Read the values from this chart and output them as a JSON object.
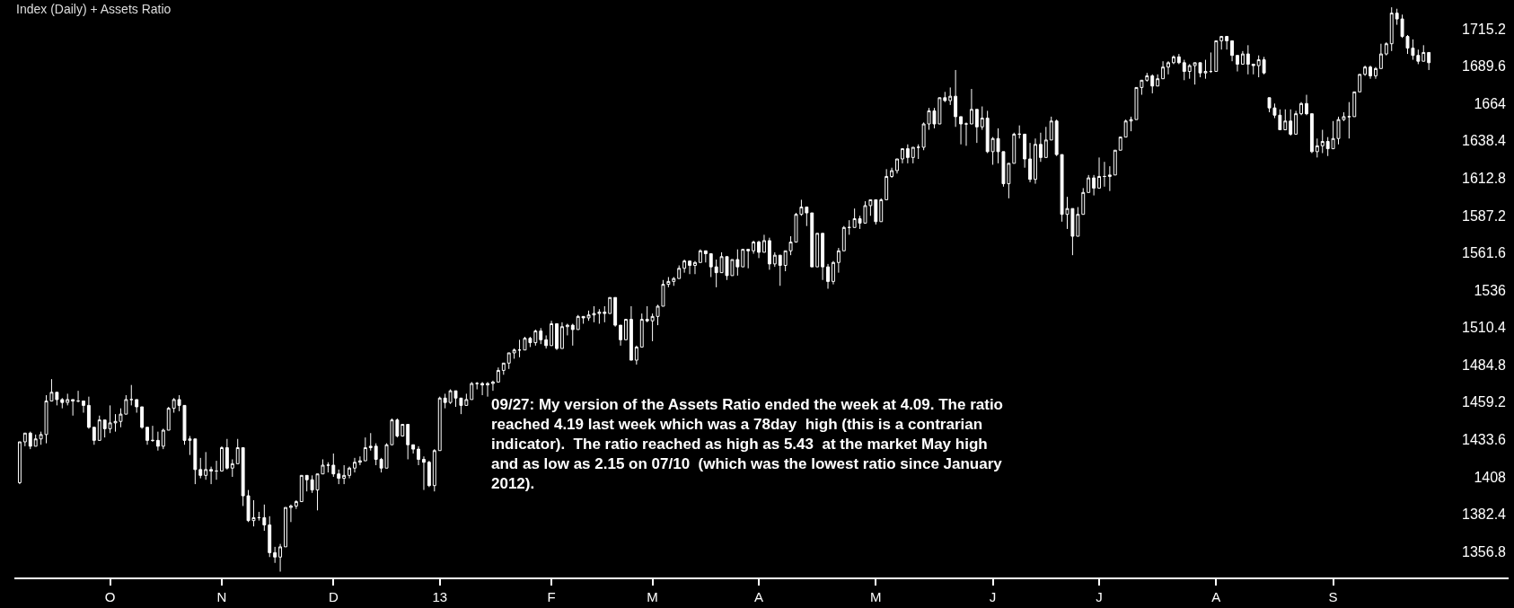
{
  "chart_data": {
    "type": "candlestick",
    "title": "Index (Daily) + Assets Ratio",
    "color": "#ffffff",
    "grid": false,
    "categories": [
      null,
      null,
      null,
      null,
      null,
      null,
      null,
      null,
      null,
      null,
      null,
      null,
      null,
      null,
      null,
      null,
      null,
      "O",
      null,
      null,
      null,
      null,
      null,
      null,
      null,
      null,
      null,
      null,
      null,
      null,
      null,
      null,
      null,
      null,
      null,
      null,
      null,
      null,
      "N",
      null,
      null,
      null,
      null,
      null,
      null,
      null,
      null,
      null,
      null,
      null,
      null,
      null,
      null,
      null,
      null,
      null,
      null,
      null,
      null,
      "D",
      null,
      null,
      null,
      null,
      null,
      null,
      null,
      null,
      null,
      null,
      null,
      null,
      null,
      null,
      null,
      null,
      null,
      null,
      null,
      "13",
      null,
      null,
      null,
      null,
      null,
      null,
      null,
      null,
      null,
      null,
      null,
      null,
      null,
      null,
      null,
      null,
      null,
      null,
      null,
      null,
      "F",
      null,
      null,
      null,
      null,
      null,
      null,
      null,
      null,
      null,
      null,
      null,
      null,
      null,
      null,
      null,
      null,
      null,
      null,
      "M",
      null,
      null,
      null,
      null,
      null,
      null,
      null,
      null,
      null,
      null,
      null,
      null,
      null,
      null,
      null,
      null,
      null,
      null,
      null,
      "A",
      null,
      null,
      null,
      null,
      null,
      null,
      null,
      null,
      null,
      null,
      null,
      null,
      null,
      null,
      null,
      null,
      null,
      null,
      null,
      null,
      null,
      "M",
      null,
      null,
      null,
      null,
      null,
      null,
      null,
      null,
      null,
      null,
      null,
      null,
      null,
      null,
      null,
      null,
      null,
      null,
      null,
      null,
      null,
      "J",
      null,
      null,
      null,
      null,
      null,
      null,
      null,
      null,
      null,
      null,
      null,
      null,
      null,
      null,
      null,
      null,
      null,
      null,
      null,
      "J",
      null,
      null,
      null,
      null,
      null,
      null,
      null,
      null,
      null,
      null,
      null,
      null,
      null,
      null,
      null,
      null,
      null,
      null,
      null,
      null,
      null,
      "A",
      null,
      null,
      null,
      null,
      null,
      null,
      null,
      null,
      null,
      null,
      null,
      null,
      null,
      null,
      null,
      null,
      null,
      null,
      null,
      null,
      null,
      "S",
      null,
      null,
      null,
      null,
      null,
      null,
      null,
      null,
      null,
      null,
      null,
      null,
      null,
      null,
      null,
      null,
      null,
      null
    ],
    "ohlc": [
      [
        1404,
        1432,
        1403,
        1432
      ],
      [
        1432,
        1438,
        1429,
        1438
      ],
      [
        1438,
        1439,
        1427,
        1429
      ],
      [
        1429,
        1437,
        1429,
        1434
      ],
      [
        1434,
        1439,
        1430,
        1437
      ],
      [
        1437,
        1464,
        1431,
        1460
      ],
      [
        1460,
        1475,
        1460,
        1466
      ],
      [
        1466,
        1466,
        1457,
        1461
      ],
      [
        1461,
        1462,
        1455,
        1459
      ],
      [
        1459,
        1465,
        1457,
        1461
      ],
      [
        1461,
        1461,
        1450,
        1460
      ],
      [
        1460,
        1467,
        1459,
        1460
      ],
      [
        1460,
        1460,
        1452,
        1457
      ],
      [
        1457,
        1463,
        1441,
        1442
      ],
      [
        1442,
        1442,
        1430,
        1433
      ],
      [
        1433,
        1450,
        1433,
        1447
      ],
      [
        1447,
        1447,
        1435,
        1441
      ],
      [
        1441,
        1457,
        1438,
        1445
      ],
      [
        1445,
        1451,
        1439,
        1446
      ],
      [
        1446,
        1455,
        1442,
        1451
      ],
      [
        1451,
        1464,
        1451,
        1461
      ],
      [
        1461,
        1471,
        1457,
        1461
      ],
      [
        1461,
        1461,
        1452,
        1456
      ],
      [
        1456,
        1456,
        1441,
        1442
      ],
      [
        1442,
        1442,
        1430,
        1433
      ],
      [
        1433,
        1443,
        1432,
        1433
      ],
      [
        1433,
        1439,
        1426,
        1429
      ],
      [
        1429,
        1441,
        1427,
        1440
      ],
      [
        1440,
        1456,
        1440,
        1455
      ],
      [
        1455,
        1462,
        1452,
        1461
      ],
      [
        1461,
        1464,
        1453,
        1457
      ],
      [
        1457,
        1457,
        1430,
        1433
      ],
      [
        1433,
        1436,
        1423,
        1434
      ],
      [
        1434,
        1434,
        1403,
        1413
      ],
      [
        1413,
        1421,
        1407,
        1409
      ],
      [
        1409,
        1425,
        1406,
        1413
      ],
      [
        1413,
        1415,
        1403,
        1412
      ],
      [
        1412,
        1419,
        1406,
        1412
      ],
      [
        1412,
        1429,
        1412,
        1428
      ],
      [
        1428,
        1434,
        1413,
        1414
      ],
      [
        1414,
        1420,
        1408,
        1417
      ],
      [
        1417,
        1434,
        1417,
        1428
      ],
      [
        1428,
        1428,
        1388,
        1395
      ],
      [
        1395,
        1399,
        1377,
        1378
      ],
      [
        1378,
        1392,
        1374,
        1380
      ],
      [
        1380,
        1384,
        1378,
        1380
      ],
      [
        1380,
        1389,
        1371,
        1375
      ],
      [
        1375,
        1381,
        1353,
        1356
      ],
      [
        1356,
        1360,
        1349,
        1353
      ],
      [
        1353,
        1362,
        1343,
        1360
      ],
      [
        1360,
        1387,
        1360,
        1387
      ],
      [
        1387,
        1389,
        1377,
        1388
      ],
      [
        1388,
        1392,
        1386,
        1391
      ],
      [
        1391,
        1409,
        1391,
        1409
      ],
      [
        1409,
        1409,
        1398,
        1406
      ],
      [
        1406,
        1409,
        1397,
        1399
      ],
      [
        1399,
        1410,
        1385,
        1410
      ],
      [
        1410,
        1420,
        1410,
        1416
      ],
      [
        1416,
        1418,
        1411,
        1416
      ],
      [
        1416,
        1424,
        1408,
        1410
      ],
      [
        1410,
        1413,
        1403,
        1407
      ],
      [
        1407,
        1416,
        1403,
        1409
      ],
      [
        1409,
        1415,
        1407,
        1414
      ],
      [
        1414,
        1421,
        1411,
        1418
      ],
      [
        1418,
        1422,
        1416,
        1419
      ],
      [
        1419,
        1435,
        1419,
        1428
      ],
      [
        1428,
        1438,
        1426,
        1429
      ],
      [
        1429,
        1431,
        1416,
        1420
      ],
      [
        1420,
        1421,
        1411,
        1414
      ],
      [
        1414,
        1431,
        1414,
        1430
      ],
      [
        1430,
        1448,
        1430,
        1447
      ],
      [
        1447,
        1448,
        1435,
        1436
      ],
      [
        1436,
        1444,
        1436,
        1444
      ],
      [
        1444,
        1444,
        1420,
        1430
      ],
      [
        1430,
        1430,
        1424,
        1427
      ],
      [
        1427,
        1429,
        1416,
        1420
      ],
      [
        1420,
        1422,
        1399,
        1418
      ],
      [
        1418,
        1419,
        1401,
        1402
      ],
      [
        1402,
        1427,
        1398,
        1426
      ],
      [
        1426,
        1463,
        1426,
        1462
      ],
      [
        1462,
        1465,
        1455,
        1459
      ],
      [
        1459,
        1468,
        1458,
        1467
      ],
      [
        1467,
        1467,
        1456,
        1462
      ],
      [
        1462,
        1462,
        1451,
        1457
      ],
      [
        1457,
        1465,
        1457,
        1461
      ],
      [
        1461,
        1473,
        1461,
        1472
      ],
      [
        1472,
        1473,
        1468,
        1472
      ],
      [
        1472,
        1473,
        1464,
        1471
      ],
      [
        1471,
        1473,
        1463,
        1472
      ],
      [
        1472,
        1474,
        1467,
        1473
      ],
      [
        1473,
        1483,
        1473,
        1481
      ],
      [
        1481,
        1486,
        1478,
        1486
      ],
      [
        1486,
        1493,
        1482,
        1493
      ],
      [
        1493,
        1496,
        1489,
        1495
      ],
      [
        1495,
        1502,
        1490,
        1495
      ],
      [
        1495,
        1504,
        1495,
        1503
      ],
      [
        1503,
        1504,
        1497,
        1500
      ],
      [
        1500,
        1509,
        1498,
        1508
      ],
      [
        1508,
        1510,
        1499,
        1502
      ],
      [
        1502,
        1505,
        1496,
        1498
      ],
      [
        1498,
        1515,
        1498,
        1513
      ],
      [
        1513,
        1513,
        1495,
        1496
      ],
      [
        1496,
        1514,
        1496,
        1511
      ],
      [
        1511,
        1513,
        1505,
        1512
      ],
      [
        1512,
        1513,
        1498,
        1509
      ],
      [
        1509,
        1519,
        1509,
        1518
      ],
      [
        1518,
        1518,
        1513,
        1517
      ],
      [
        1517,
        1522,
        1515,
        1519
      ],
      [
        1519,
        1525,
        1514,
        1520
      ],
      [
        1520,
        1523,
        1513,
        1521
      ],
      [
        1521,
        1525,
        1514,
        1520
      ],
      [
        1520,
        1531,
        1520,
        1531
      ],
      [
        1531,
        1531,
        1511,
        1512
      ],
      [
        1512,
        1512,
        1498,
        1502
      ],
      [
        1502,
        1516,
        1502,
        1516
      ],
      [
        1516,
        1525,
        1488,
        1488
      ],
      [
        1488,
        1498,
        1485,
        1497
      ],
      [
        1497,
        1520,
        1497,
        1516
      ],
      [
        1516,
        1525,
        1514,
        1515
      ],
      [
        1515,
        1520,
        1501,
        1518
      ],
      [
        1518,
        1526,
        1512,
        1525
      ],
      [
        1525,
        1543,
        1525,
        1540
      ],
      [
        1540,
        1545,
        1538,
        1542
      ],
      [
        1542,
        1545,
        1539,
        1544
      ],
      [
        1544,
        1553,
        1544,
        1551
      ],
      [
        1551,
        1557,
        1548,
        1556
      ],
      [
        1556,
        1556,
        1547,
        1553
      ],
      [
        1553,
        1556,
        1547,
        1555
      ],
      [
        1555,
        1564,
        1555,
        1563
      ],
      [
        1563,
        1563,
        1555,
        1561
      ],
      [
        1561,
        1561,
        1545,
        1552
      ],
      [
        1552,
        1557,
        1538,
        1548
      ],
      [
        1548,
        1562,
        1548,
        1559
      ],
      [
        1559,
        1559,
        1543,
        1546
      ],
      [
        1546,
        1557,
        1546,
        1557
      ],
      [
        1557,
        1564,
        1546,
        1552
      ],
      [
        1552,
        1564,
        1552,
        1564
      ],
      [
        1564,
        1564,
        1551,
        1563
      ],
      [
        1563,
        1570,
        1561,
        1569
      ],
      [
        1569,
        1570,
        1558,
        1562
      ],
      [
        1562,
        1574,
        1562,
        1570
      ],
      [
        1570,
        1572,
        1550,
        1554
      ],
      [
        1554,
        1562,
        1552,
        1560
      ],
      [
        1560,
        1560,
        1539,
        1553
      ],
      [
        1553,
        1563,
        1549,
        1563
      ],
      [
        1563,
        1573,
        1560,
        1569
      ],
      [
        1569,
        1589,
        1569,
        1588
      ],
      [
        1588,
        1598,
        1587,
        1593
      ],
      [
        1593,
        1593,
        1580,
        1589
      ],
      [
        1589,
        1589,
        1552,
        1552
      ],
      [
        1552,
        1575,
        1552,
        1575
      ],
      [
        1575,
        1575,
        1543,
        1552
      ],
      [
        1552,
        1554,
        1537,
        1542
      ],
      [
        1542,
        1556,
        1540,
        1555
      ],
      [
        1555,
        1565,
        1548,
        1563
      ],
      [
        1563,
        1580,
        1563,
        1579
      ],
      [
        1579,
        1584,
        1574,
        1579
      ],
      [
        1579,
        1592,
        1579,
        1585
      ],
      [
        1585,
        1587,
        1578,
        1582
      ],
      [
        1582,
        1597,
        1582,
        1594
      ],
      [
        1594,
        1598,
        1587,
        1598
      ],
      [
        1598,
        1598,
        1581,
        1583
      ],
      [
        1583,
        1599,
        1583,
        1598
      ],
      [
        1598,
        1619,
        1598,
        1614
      ],
      [
        1614,
        1620,
        1613,
        1618
      ],
      [
        1618,
        1626,
        1616,
        1626
      ],
      [
        1626,
        1633,
        1623,
        1633
      ],
      [
        1633,
        1636,
        1623,
        1627
      ],
      [
        1627,
        1634,
        1623,
        1634
      ],
      [
        1634,
        1636,
        1626,
        1634
      ],
      [
        1634,
        1651,
        1632,
        1650
      ],
      [
        1650,
        1661,
        1646,
        1659
      ],
      [
        1659,
        1661,
        1647,
        1650
      ],
      [
        1650,
        1668,
        1650,
        1668
      ],
      [
        1668,
        1672,
        1665,
        1666
      ],
      [
        1666,
        1675,
        1663,
        1669
      ],
      [
        1669,
        1687,
        1648,
        1655
      ],
      [
        1655,
        1655,
        1636,
        1650
      ],
      [
        1650,
        1651,
        1635,
        1650
      ],
      [
        1650,
        1674,
        1650,
        1660
      ],
      [
        1660,
        1660,
        1637,
        1648
      ],
      [
        1648,
        1662,
        1646,
        1654
      ],
      [
        1654,
        1659,
        1630,
        1631
      ],
      [
        1631,
        1641,
        1622,
        1640
      ],
      [
        1640,
        1647,
        1623,
        1631
      ],
      [
        1631,
        1631,
        1607,
        1609
      ],
      [
        1609,
        1623,
        1599,
        1623
      ],
      [
        1623,
        1644,
        1623,
        1643
      ],
      [
        1643,
        1649,
        1640,
        1643
      ],
      [
        1643,
        1643,
        1620,
        1626
      ],
      [
        1626,
        1637,
        1610,
        1612
      ],
      [
        1612,
        1640,
        1609,
        1636
      ],
      [
        1636,
        1644,
        1624,
        1627
      ],
      [
        1627,
        1648,
        1627,
        1639
      ],
      [
        1639,
        1655,
        1639,
        1652
      ],
      [
        1652,
        1653,
        1628,
        1629
      ],
      [
        1629,
        1629,
        1583,
        1588
      ],
      [
        1588,
        1600,
        1578,
        1592
      ],
      [
        1592,
        1592,
        1560,
        1573
      ],
      [
        1573,
        1593,
        1573,
        1588
      ],
      [
        1588,
        1606,
        1588,
        1603
      ],
      [
        1603,
        1615,
        1603,
        1613
      ],
      [
        1613,
        1615,
        1601,
        1606
      ],
      [
        1606,
        1627,
        1606,
        1614
      ],
      [
        1614,
        1624,
        1607,
        1614
      ],
      [
        1614,
        1621,
        1604,
        1615
      ],
      [
        1615,
        1632,
        1615,
        1632
      ],
      [
        1632,
        1641,
        1632,
        1641
      ],
      [
        1641,
        1653,
        1641,
        1652
      ],
      [
        1652,
        1655,
        1645,
        1653
      ],
      [
        1653,
        1675,
        1653,
        1675
      ],
      [
        1675,
        1680,
        1670,
        1680
      ],
      [
        1680,
        1685,
        1679,
        1683
      ],
      [
        1683,
        1684,
        1671,
        1676
      ],
      [
        1676,
        1684,
        1676,
        1681
      ],
      [
        1681,
        1693,
        1681,
        1689
      ],
      [
        1689,
        1693,
        1684,
        1692
      ],
      [
        1692,
        1697,
        1691,
        1696
      ],
      [
        1696,
        1698,
        1691,
        1692
      ],
      [
        1692,
        1694,
        1680,
        1686
      ],
      [
        1686,
        1691,
        1681,
        1690
      ],
      [
        1690,
        1692,
        1677,
        1692
      ],
      [
        1692,
        1692,
        1682,
        1685
      ],
      [
        1685,
        1694,
        1681,
        1686
      ],
      [
        1686,
        1699,
        1685,
        1686
      ],
      [
        1686,
        1707,
        1686,
        1707
      ],
      [
        1707,
        1710,
        1701,
        1710
      ],
      [
        1710,
        1710,
        1701,
        1707
      ],
      [
        1707,
        1707,
        1693,
        1697
      ],
      [
        1697,
        1697,
        1686,
        1691
      ],
      [
        1691,
        1700,
        1691,
        1698
      ],
      [
        1698,
        1704,
        1684,
        1691
      ],
      [
        1691,
        1691,
        1684,
        1690
      ],
      [
        1690,
        1697,
        1682,
        1694
      ],
      [
        1694,
        1696,
        1684,
        1685
      ],
      [
        1668,
        1668,
        1658,
        1661
      ],
      [
        1661,
        1664,
        1654,
        1656
      ],
      [
        1656,
        1660,
        1646,
        1646
      ],
      [
        1646,
        1660,
        1646,
        1652
      ],
      [
        1652,
        1660,
        1642,
        1643
      ],
      [
        1643,
        1659,
        1643,
        1657
      ],
      [
        1657,
        1665,
        1656,
        1664
      ],
      [
        1664,
        1670,
        1656,
        1657
      ],
      [
        1657,
        1657,
        1630,
        1631
      ],
      [
        1631,
        1640,
        1627,
        1635
      ],
      [
        1635,
        1646,
        1630,
        1638
      ],
      [
        1638,
        1641,
        1628,
        1633
      ],
      [
        1633,
        1652,
        1633,
        1640
      ],
      [
        1640,
        1655,
        1636,
        1653
      ],
      [
        1653,
        1658,
        1652,
        1655
      ],
      [
        1655,
        1665,
        1640,
        1655
      ],
      [
        1655,
        1672,
        1655,
        1672
      ],
      [
        1672,
        1684,
        1672,
        1684
      ],
      [
        1684,
        1690,
        1683,
        1689
      ],
      [
        1689,
        1690,
        1681,
        1683
      ],
      [
        1683,
        1689,
        1681,
        1688
      ],
      [
        1688,
        1705,
        1688,
        1698
      ],
      [
        1698,
        1706,
        1697,
        1705
      ],
      [
        1705,
        1730,
        1700,
        1726
      ],
      [
        1726,
        1729,
        1718,
        1722
      ],
      [
        1722,
        1725,
        1709,
        1710
      ],
      [
        1710,
        1711,
        1698,
        1702
      ],
      [
        1702,
        1708,
        1694,
        1697
      ],
      [
        1697,
        1701,
        1691,
        1693
      ],
      [
        1693,
        1704,
        1693,
        1699
      ],
      [
        1699,
        1699,
        1687,
        1692
      ]
    ],
    "ylim": [
      1339,
      1735
    ],
    "yticks": [
      1356.8,
      1382.4,
      1408,
      1433.6,
      1459.2,
      1484.8,
      1510.4,
      1536,
      1561.6,
      1587.2,
      1612.8,
      1638.4,
      1664,
      1689.6,
      1715.2
    ],
    "annotations": [
      "09/27: My version of the Assets Ratio ended the week at 4.09. The ratio reached 4.19 last week which was a 78day  high (this is a contrarian indicator).  The ratio reached as high as 5.43  at the market May high and as low as 2.15 on 07/10  (which was the lowest ratio since January 2012)."
    ]
  }
}
